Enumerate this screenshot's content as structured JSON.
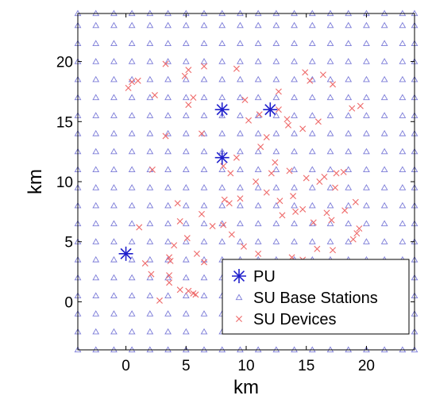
{
  "chart_data": {
    "type": "scatter",
    "title": "",
    "xlabel": "km",
    "ylabel": "km",
    "xlim": [
      -4,
      24
    ],
    "ylim": [
      -4,
      24
    ],
    "xticks": [
      0,
      5,
      10,
      15,
      20
    ],
    "yticks": [
      0,
      5,
      10,
      15,
      20
    ],
    "xtick_labels": [
      "0",
      "5",
      "10",
      "15",
      "20"
    ],
    "ytick_labels": [
      "0",
      "5",
      "10",
      "15",
      "20"
    ],
    "grid": false,
    "legend_position": "bottom-right",
    "series": [
      {
        "name": "PU",
        "marker": "asterisk",
        "color": "#1f1fcc",
        "points": [
          [
            0,
            4
          ],
          [
            8,
            12
          ],
          [
            8,
            16
          ],
          [
            12,
            16
          ]
        ]
      },
      {
        "name": "SU Base Stations",
        "marker": "triangle",
        "color": "#7b7bd8",
        "grid_x": [
          -4,
          -2.5,
          -1,
          0.5,
          2,
          3.5,
          5,
          6.5,
          8,
          9.5,
          11,
          12.5,
          14,
          15.5,
          17,
          18.5,
          20,
          21.5,
          23,
          24
        ],
        "grid_y": [
          -4,
          -2.5,
          -1,
          0.5,
          2,
          3.5,
          5,
          6.5,
          8,
          9.5,
          11,
          12.5,
          14,
          15.5,
          17,
          18.5,
          20,
          21.5,
          23,
          24
        ]
      },
      {
        "name": "SU Devices",
        "marker": "x",
        "color": "#ee6a6a",
        "points": [
          [
            3.3,
            19.8
          ],
          [
            5.2,
            19.3
          ],
          [
            4.9,
            18.8
          ],
          [
            6.5,
            19.6
          ],
          [
            9.2,
            19.4
          ],
          [
            1.0,
            18.4
          ],
          [
            0.5,
            18.3
          ],
          [
            0.2,
            17.8
          ],
          [
            2.4,
            17.2
          ],
          [
            5.6,
            17.0
          ],
          [
            5.2,
            16.4
          ],
          [
            9.9,
            16.8
          ],
          [
            12.7,
            16.0
          ],
          [
            13.4,
            15.2
          ],
          [
            11.1,
            15.6
          ],
          [
            10.2,
            15.1
          ],
          [
            13.5,
            14.7
          ],
          [
            14.7,
            14.4
          ],
          [
            16.0,
            15.0
          ],
          [
            14.9,
            19.1
          ],
          [
            16.4,
            18.9
          ],
          [
            17.2,
            18.1
          ],
          [
            18.8,
            16.1
          ],
          [
            19.5,
            16.3
          ],
          [
            3.3,
            13.8
          ],
          [
            6.3,
            14.0
          ],
          [
            11.7,
            13.7
          ],
          [
            11.2,
            12.9
          ],
          [
            9.2,
            12.0
          ],
          [
            8.1,
            11.3
          ],
          [
            12.4,
            11.6
          ],
          [
            12.1,
            10.7
          ],
          [
            13.6,
            10.9
          ],
          [
            15.0,
            10.3
          ],
          [
            16.5,
            10.4
          ],
          [
            16.1,
            10.0
          ],
          [
            17.5,
            10.7
          ],
          [
            17.4,
            9.5
          ],
          [
            18.1,
            10.8
          ],
          [
            2.2,
            11.0
          ],
          [
            8.7,
            10.7
          ],
          [
            10.8,
            10.0
          ],
          [
            11.7,
            9.1
          ],
          [
            12.8,
            8.4
          ],
          [
            13.9,
            8.8
          ],
          [
            13.0,
            7.2
          ],
          [
            14.1,
            7.5
          ],
          [
            14.7,
            7.7
          ],
          [
            15.6,
            6.6
          ],
          [
            16.7,
            7.4
          ],
          [
            19.1,
            8.3
          ],
          [
            18.2,
            7.6
          ],
          [
            17.1,
            6.8
          ],
          [
            18.9,
            5.2
          ],
          [
            19.2,
            5.7
          ],
          [
            19.4,
            6.1
          ],
          [
            8.2,
            8.5
          ],
          [
            8.6,
            8.2
          ],
          [
            9.5,
            8.6
          ],
          [
            4.3,
            8.2
          ],
          [
            6.3,
            7.3
          ],
          [
            4.5,
            6.7
          ],
          [
            7.2,
            6.3
          ],
          [
            8.1,
            6.4
          ],
          [
            8.8,
            5.6
          ],
          [
            5.1,
            5.3
          ],
          [
            4.0,
            4.7
          ],
          [
            9.8,
            4.6
          ],
          [
            11.0,
            4.0
          ],
          [
            12.0,
            3.0
          ],
          [
            13.8,
            3.7
          ],
          [
            14.7,
            3.5
          ],
          [
            15.9,
            4.4
          ],
          [
            17.2,
            4.3
          ],
          [
            1.1,
            6.2
          ],
          [
            1.6,
            3.2
          ],
          [
            2.1,
            2.3
          ],
          [
            3.6,
            3.7
          ],
          [
            3.7,
            3.4
          ],
          [
            3.6,
            2.2
          ],
          [
            3.6,
            1.6
          ],
          [
            5.9,
            4.0
          ],
          [
            6.5,
            3.3
          ],
          [
            4.5,
            1.0
          ],
          [
            5.2,
            0.9
          ],
          [
            5.6,
            0.7
          ],
          [
            5.8,
            0.6
          ],
          [
            2.8,
            0.1
          ],
          [
            12.7,
            17.5
          ],
          [
            15.3,
            18.4
          ]
        ]
      }
    ]
  }
}
